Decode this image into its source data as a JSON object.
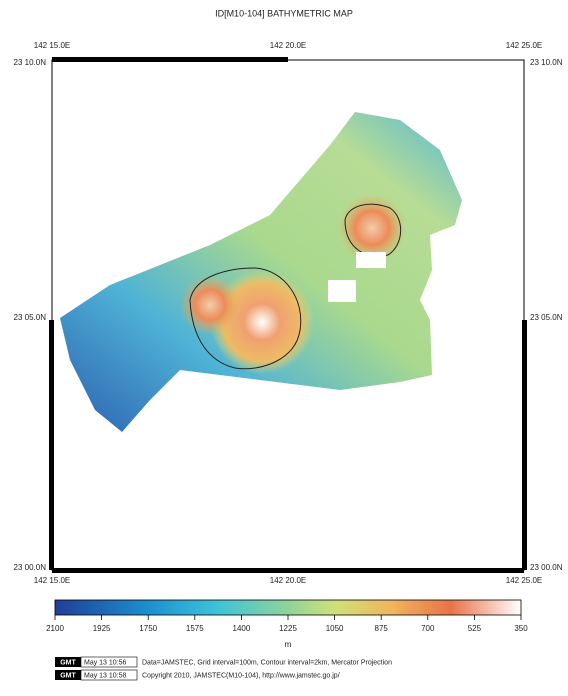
{
  "title": "ID[M10-104] BATHYMETRIC MAP",
  "map": {
    "top_labels": [
      "142 15.0E",
      "142 20.0E",
      "142 25.0E"
    ],
    "bottom_labels": [
      "142 15.0E",
      "142 20.0E",
      "142 25.0E"
    ],
    "left_labels": [
      "23 10.0N",
      "23 05.0N",
      "23 00.0N"
    ],
    "right_labels": [
      "23 10.0N",
      "23 05.0N",
      "23 00.0N"
    ]
  },
  "colorbar": {
    "ticks": [
      2100,
      1925,
      1750,
      1575,
      1400,
      1225,
      1050,
      875,
      700,
      525,
      350
    ],
    "unit": "m"
  },
  "footer": {
    "stamps": [
      {
        "logo": "GMT",
        "time": "May 13 10:56"
      },
      {
        "logo": "GMT",
        "time": "May 13 10:58"
      }
    ],
    "lines": [
      "Data=JAMSTEC, Grid interval=100m, Contour interval=2km, Mercator Projection",
      "Copyright 2010, JAMSTEC(M10-104), http://www.jamstec.go.jp/"
    ]
  }
}
